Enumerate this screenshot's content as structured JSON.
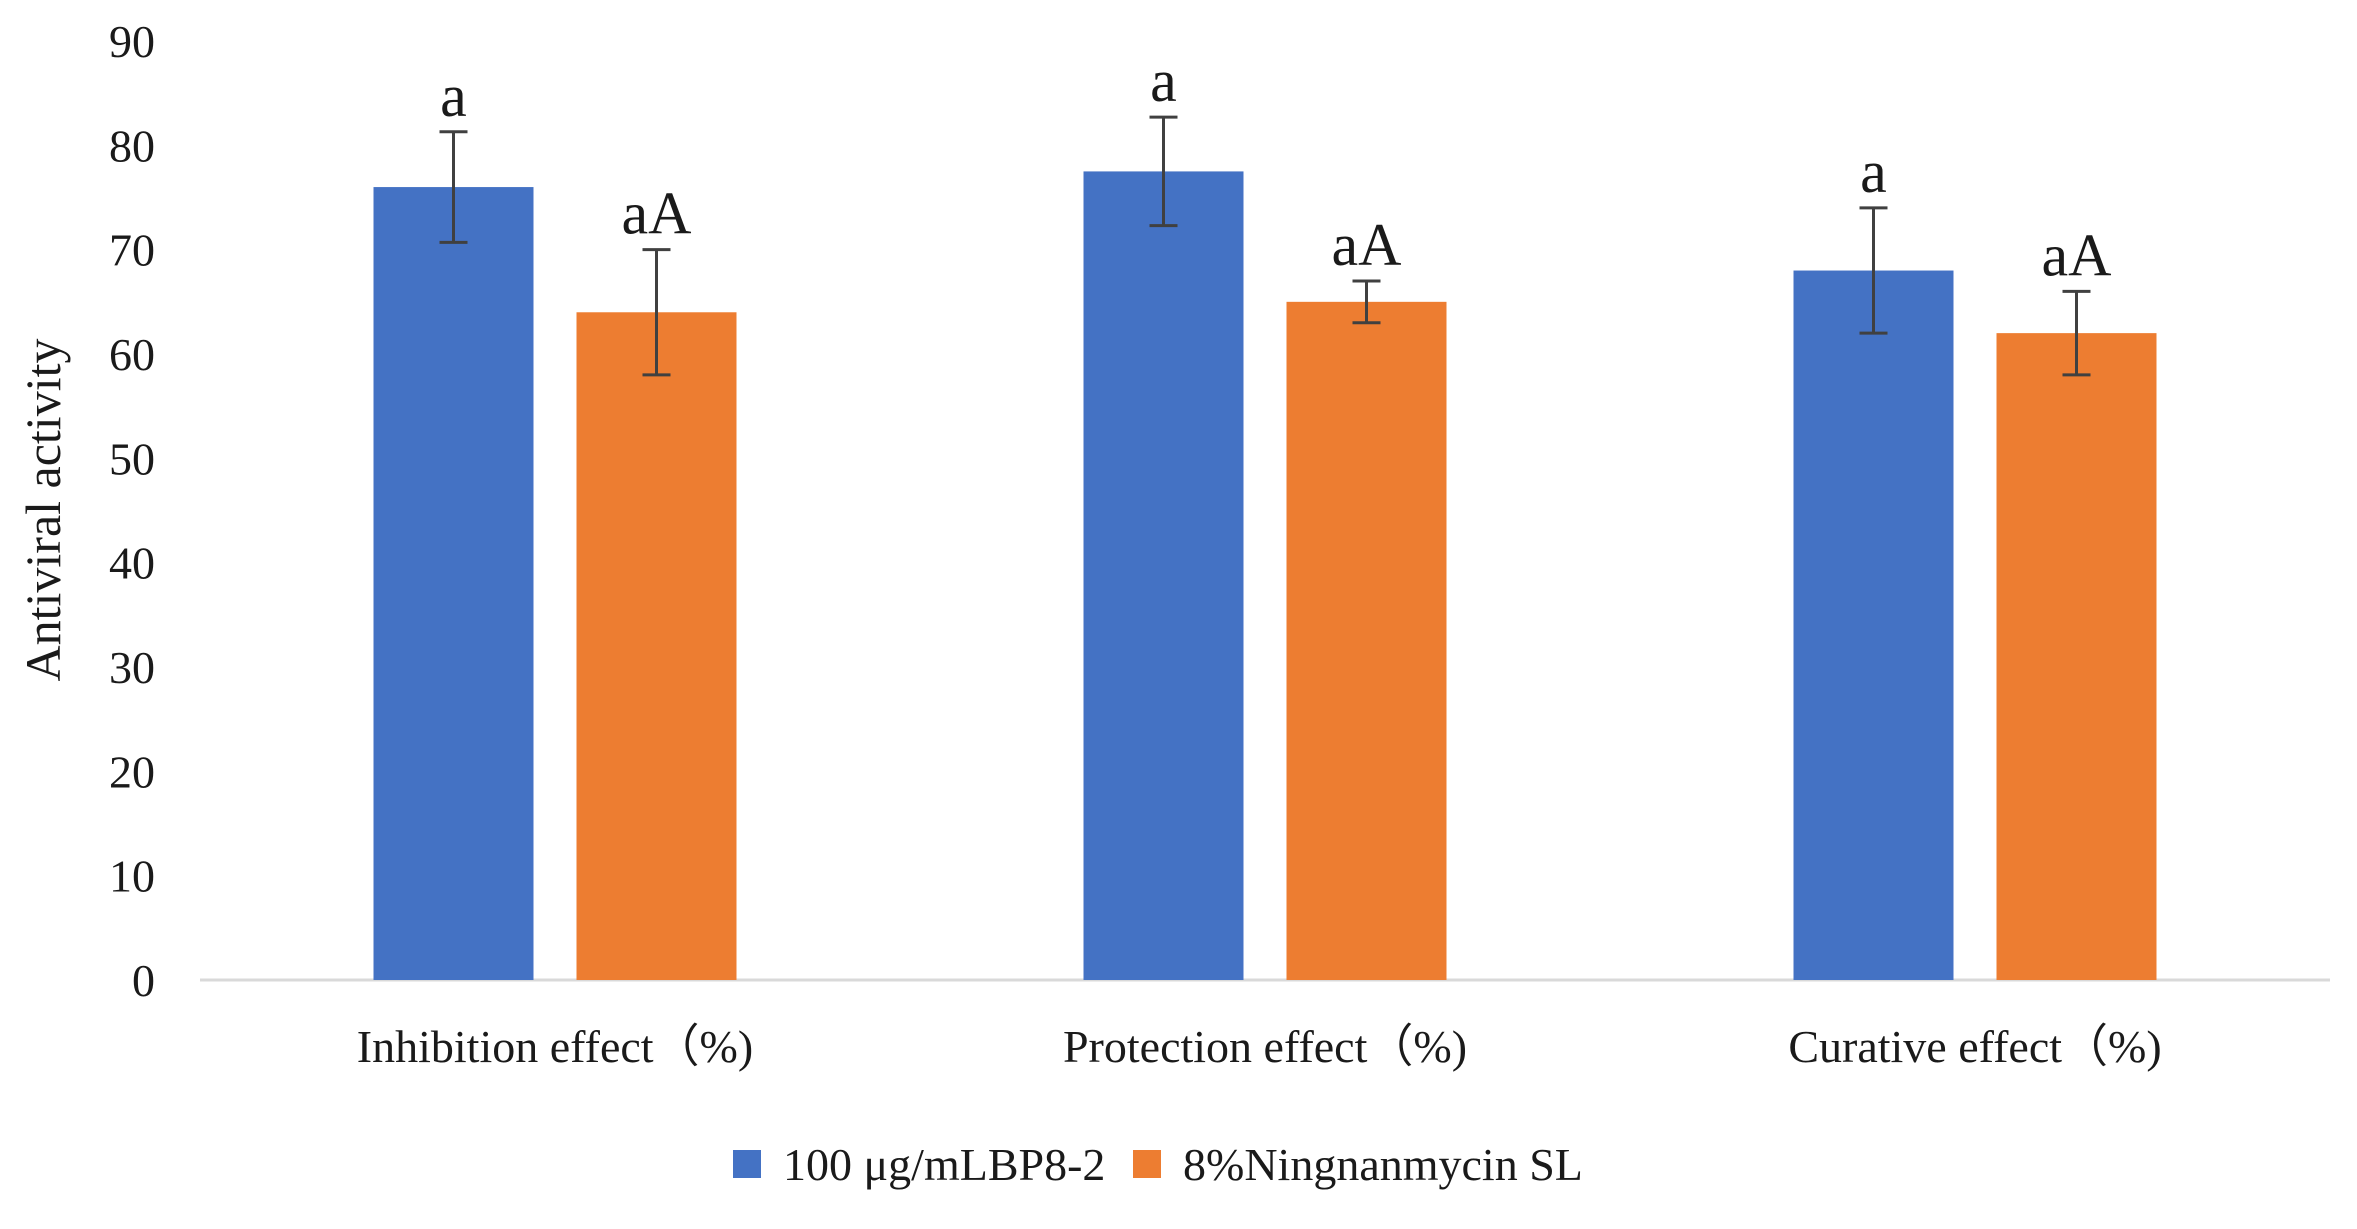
{
  "chart_data": {
    "type": "bar",
    "title": "",
    "xlabel": "",
    "ylabel": "Antiviral activity",
    "ylim": [
      0,
      90
    ],
    "yticks": [
      0,
      10,
      20,
      30,
      40,
      50,
      60,
      70,
      80,
      90
    ],
    "categories": [
      "Inhibition effect（%)",
      "Protection effect（%)",
      "Curative effect（%)"
    ],
    "series": [
      {
        "name": "100 μg/mLBP8-2",
        "color": "#4472C4",
        "values": [
          76,
          77.5,
          68
        ],
        "errors": [
          5.3,
          5.2,
          6
        ],
        "labels": [
          "a",
          "a",
          "a"
        ]
      },
      {
        "name": "8%Ningnanmycin SL",
        "color": "#ED7D31",
        "values": [
          64,
          65,
          62
        ],
        "errors": [
          6,
          2,
          4
        ],
        "labels": [
          "aA",
          "aA",
          "aA"
        ]
      }
    ],
    "legend_position": "bottom",
    "grid": false
  }
}
